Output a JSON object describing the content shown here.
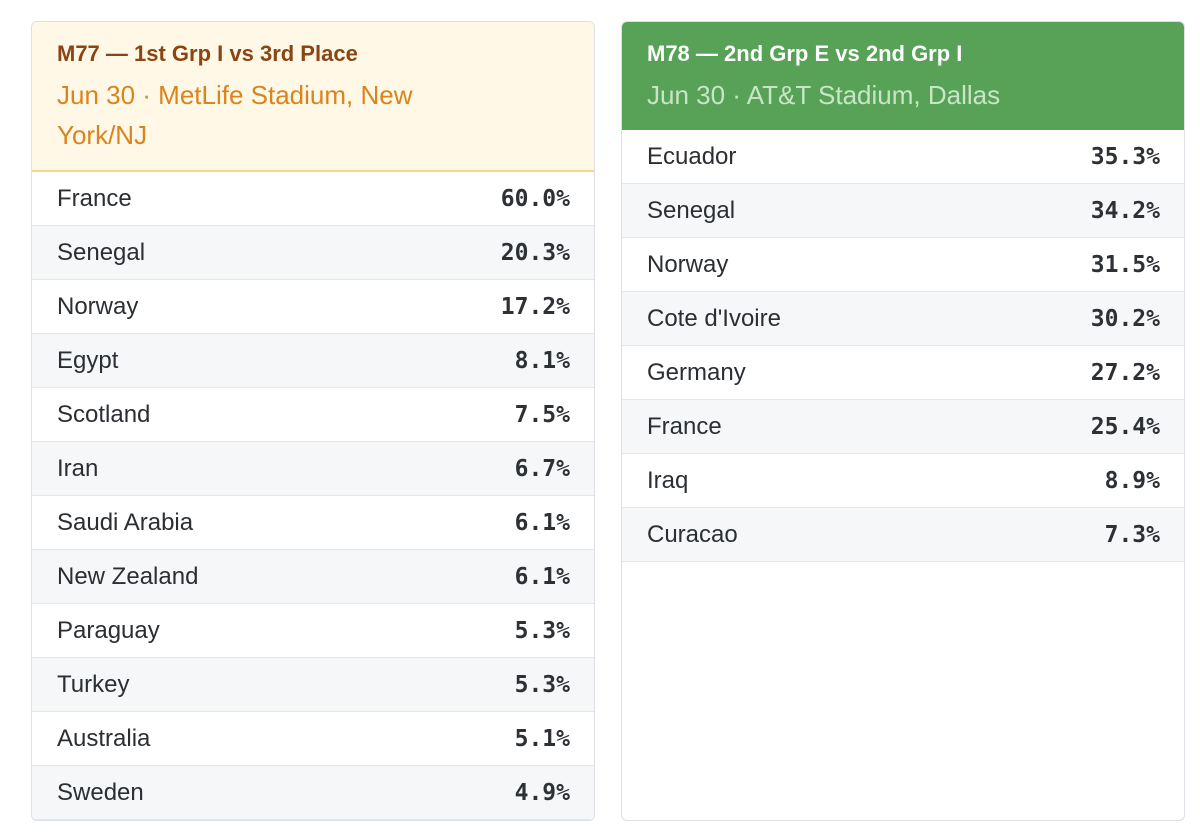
{
  "matches": [
    {
      "title": "M77 — 1st Grp I vs 3rd Place",
      "subtitle": "Jun 30 · MetLife Stadium, New York/NJ",
      "header_bg": "#fff8e6",
      "teams": [
        {
          "name": "France",
          "pct": "60.0%"
        },
        {
          "name": "Senegal",
          "pct": "20.3%"
        },
        {
          "name": "Norway",
          "pct": "17.2%"
        },
        {
          "name": "Egypt",
          "pct": "8.1%"
        },
        {
          "name": "Scotland",
          "pct": "7.5%"
        },
        {
          "name": "Iran",
          "pct": "6.7%"
        },
        {
          "name": "Saudi Arabia",
          "pct": "6.1%"
        },
        {
          "name": "New Zealand",
          "pct": "6.1%"
        },
        {
          "name": "Paraguay",
          "pct": "5.3%"
        },
        {
          "name": "Turkey",
          "pct": "5.3%"
        },
        {
          "name": "Australia",
          "pct": "5.1%"
        },
        {
          "name": "Sweden",
          "pct": "4.9%"
        }
      ]
    },
    {
      "title": "M78 — 2nd Grp E vs 2nd Grp I",
      "subtitle": "Jun 30 · AT&T Stadium, Dallas",
      "header_bg": "#57a257",
      "teams": [
        {
          "name": "Ecuador",
          "pct": "35.3%"
        },
        {
          "name": "Senegal",
          "pct": "34.2%"
        },
        {
          "name": "Norway",
          "pct": "31.5%"
        },
        {
          "name": "Cote d'Ivoire",
          "pct": "30.2%"
        },
        {
          "name": "Germany",
          "pct": "27.2%"
        },
        {
          "name": "France",
          "pct": "25.4%"
        },
        {
          "name": "Iraq",
          "pct": "8.9%"
        },
        {
          "name": "Curacao",
          "pct": "7.3%"
        }
      ]
    }
  ]
}
